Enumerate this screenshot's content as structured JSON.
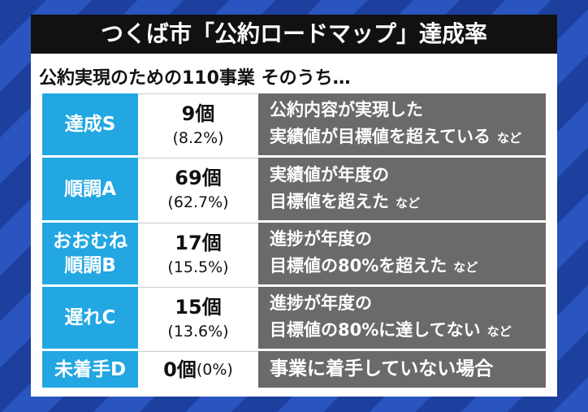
{
  "title": "つくば市「公約ロードマップ」達成率",
  "subtitle": "公約実現のための110事業 そのうち…",
  "table": {
    "rows": [
      {
        "grade": [
          "達成S"
        ],
        "count": "9個",
        "percent": "(8.2%)",
        "description": [
          "公約内容が実現した",
          "実績値が目標値を超えている"
        ],
        "note": "など"
      },
      {
        "grade": [
          "順調A"
        ],
        "count": "69個",
        "percent": "(62.7%)",
        "description": [
          "実績値が年度の",
          "目標値を超えた"
        ],
        "note": "など"
      },
      {
        "grade": [
          "おおむね",
          "順調B"
        ],
        "count": "17個",
        "percent": "(15.5%)",
        "description": [
          "進捗が年度の",
          "目標値の80%を超えた"
        ],
        "note": "など"
      },
      {
        "grade": [
          "遅れC"
        ],
        "count": "15個",
        "percent": "(13.6%)",
        "description": [
          "進捗が年度の",
          "目標値の80%に達してない"
        ],
        "note": "など"
      },
      {
        "grade": [
          "未着手D"
        ],
        "count": "0個",
        "percent": "(0%)",
        "description": [
          "事業に着手していない場合"
        ]
      }
    ]
  }
}
